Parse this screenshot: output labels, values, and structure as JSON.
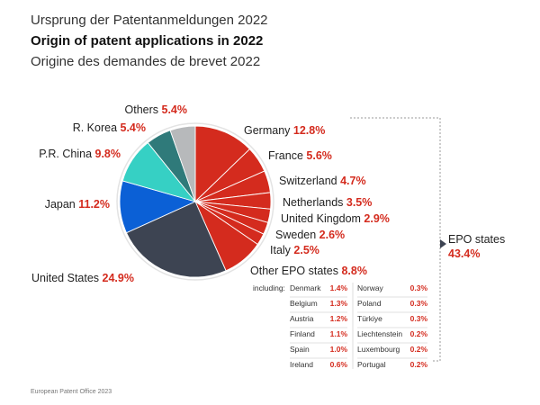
{
  "titles": {
    "de": "Ursprung der Patentanmeldungen 2022",
    "en": "Origin of patent applications in 2022",
    "fr": "Origine des demandes de brevet 2022"
  },
  "footer": "European Patent Office 2023",
  "chart_data": {
    "type": "pie",
    "unit": "%",
    "slices": [
      {
        "label": "Germany",
        "value": 12.8,
        "value_text": "12.8%",
        "color": "#d42b1e",
        "group": "EPO"
      },
      {
        "label": "France",
        "value": 5.6,
        "value_text": "5.6%",
        "color": "#d42b1e",
        "group": "EPO"
      },
      {
        "label": "Switzerland",
        "value": 4.7,
        "value_text": "4.7%",
        "color": "#d42b1e",
        "group": "EPO"
      },
      {
        "label": "Netherlands",
        "value": 3.5,
        "value_text": "3.5%",
        "color": "#d42b1e",
        "group": "EPO"
      },
      {
        "label": "United Kingdom",
        "value": 2.9,
        "value_text": "2.9%",
        "color": "#d42b1e",
        "group": "EPO"
      },
      {
        "label": "Sweden",
        "value": 2.6,
        "value_text": "2.6%",
        "color": "#d42b1e",
        "group": "EPO"
      },
      {
        "label": "Italy",
        "value": 2.5,
        "value_text": "2.5%",
        "color": "#d42b1e",
        "group": "EPO"
      },
      {
        "label": "Other EPO states",
        "value": 8.8,
        "value_text": "8.8%",
        "color": "#d42b1e",
        "group": "EPO"
      },
      {
        "label": "United States",
        "value": 24.9,
        "value_text": "24.9%",
        "color": "#3d4452",
        "group": "non-EPO"
      },
      {
        "label": "Japan",
        "value": 11.2,
        "value_text": "11.2%",
        "color": "#0b60d6",
        "group": "non-EPO"
      },
      {
        "label": "P.R. China",
        "value": 9.8,
        "value_text": "9.8%",
        "color": "#36d0c4",
        "group": "non-EPO"
      },
      {
        "label": "R. Korea",
        "value": 5.4,
        "value_text": "5.4%",
        "color": "#2f7a7a",
        "group": "non-EPO"
      },
      {
        "label": "Others",
        "value": 5.4,
        "value_text": "5.4%",
        "color": "#b7b9bb",
        "group": "non-EPO"
      }
    ],
    "epo_total": {
      "label": "EPO states",
      "value": 43.4,
      "value_text": "43.4%"
    },
    "other_epo_breakdown": {
      "intro": "including:",
      "items": [
        {
          "label": "Denmark",
          "value": 1.4,
          "value_text": "1.4%"
        },
        {
          "label": "Belgium",
          "value": 1.3,
          "value_text": "1.3%"
        },
        {
          "label": "Austria",
          "value": 1.2,
          "value_text": "1.2%"
        },
        {
          "label": "Finland",
          "value": 1.1,
          "value_text": "1.1%"
        },
        {
          "label": "Spain",
          "value": 1.0,
          "value_text": "1.0%"
        },
        {
          "label": "Ireland",
          "value": 0.6,
          "value_text": "0.6%"
        },
        {
          "label": "Norway",
          "value": 0.3,
          "value_text": "0.3%"
        },
        {
          "label": "Poland",
          "value": 0.3,
          "value_text": "0.3%"
        },
        {
          "label": "Türkiye",
          "value": 0.3,
          "value_text": "0.3%"
        },
        {
          "label": "Liechtenstein",
          "value": 0.2,
          "value_text": "0.2%"
        },
        {
          "label": "Luxembourg",
          "value": 0.2,
          "value_text": "0.2%"
        },
        {
          "label": "Portugal",
          "value": 0.2,
          "value_text": "0.2%"
        }
      ]
    }
  }
}
